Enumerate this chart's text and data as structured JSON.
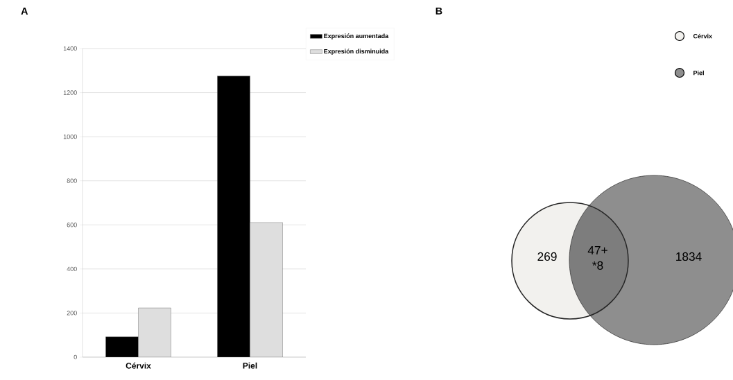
{
  "chart_data": [
    {
      "type": "bar",
      "title": "A",
      "categories": [
        "Cérvix",
        "Piel"
      ],
      "series": [
        {
          "name": "Expresión aumentada",
          "color": "#000000",
          "values": [
            92,
            1276
          ]
        },
        {
          "name": "Expresión disminuida",
          "color": "#dedede",
          "values": [
            223,
            611
          ]
        }
      ],
      "ylim": [
        0,
        1400
      ],
      "yticks": [
        0,
        200,
        400,
        600,
        800,
        1000,
        1200,
        1400
      ],
      "grid": "y",
      "legend": "top right"
    },
    {
      "type": "other",
      "title": "B",
      "categories": [
        "Cérvix",
        "Piel"
      ],
      "colors": [
        "#f2f1ee",
        "#8e8e8e"
      ],
      "annotations": [
        "269",
        "47+ *8",
        "1834"
      ]
    }
  ]
}
